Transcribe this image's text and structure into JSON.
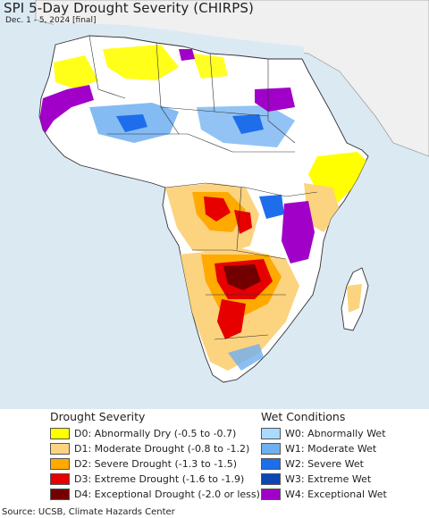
{
  "map": {
    "title": "SPI 5-Day Drought Severity (CHIRPS)",
    "subtitle": "Dec. 1 - 5, 2024 [final]",
    "region": "Africa",
    "colors": {
      "ocean": "#dbe9f3",
      "land_normal": "#ffffff",
      "outside_region": "#f0f0f0",
      "border": "#333333"
    }
  },
  "legend": {
    "drought": {
      "title": "Drought Severity",
      "items": [
        {
          "label": "D0: Abnormally Dry (-0.5 to -0.7)",
          "color": "#ffff00"
        },
        {
          "label": "D1: Moderate Drought (-0.8 to -1.2)",
          "color": "#fcd37f"
        },
        {
          "label": "D2: Severe Drought (-1.3 to -1.5)",
          "color": "#ffaa00"
        },
        {
          "label": "D3: Extreme Drought (-1.6 to -1.9)",
          "color": "#e60000"
        },
        {
          "label": "D4: Exceptional Drought (-2.0 or less)",
          "color": "#730000"
        }
      ]
    },
    "wet": {
      "title": "Wet Conditions",
      "items": [
        {
          "label": "W0: Abnormally Wet",
          "color": "#aadaff"
        },
        {
          "label": "W1: Moderate Wet",
          "color": "#6eaff0"
        },
        {
          "label": "W2: Severe Wet",
          "color": "#1e6eeb"
        },
        {
          "label": "W3: Extreme Wet",
          "color": "#0a46b4"
        },
        {
          "label": "W4: Exceptional Wet",
          "color": "#a000c8"
        }
      ]
    }
  },
  "source": "Source: UCSB, Climate Hazards Center"
}
